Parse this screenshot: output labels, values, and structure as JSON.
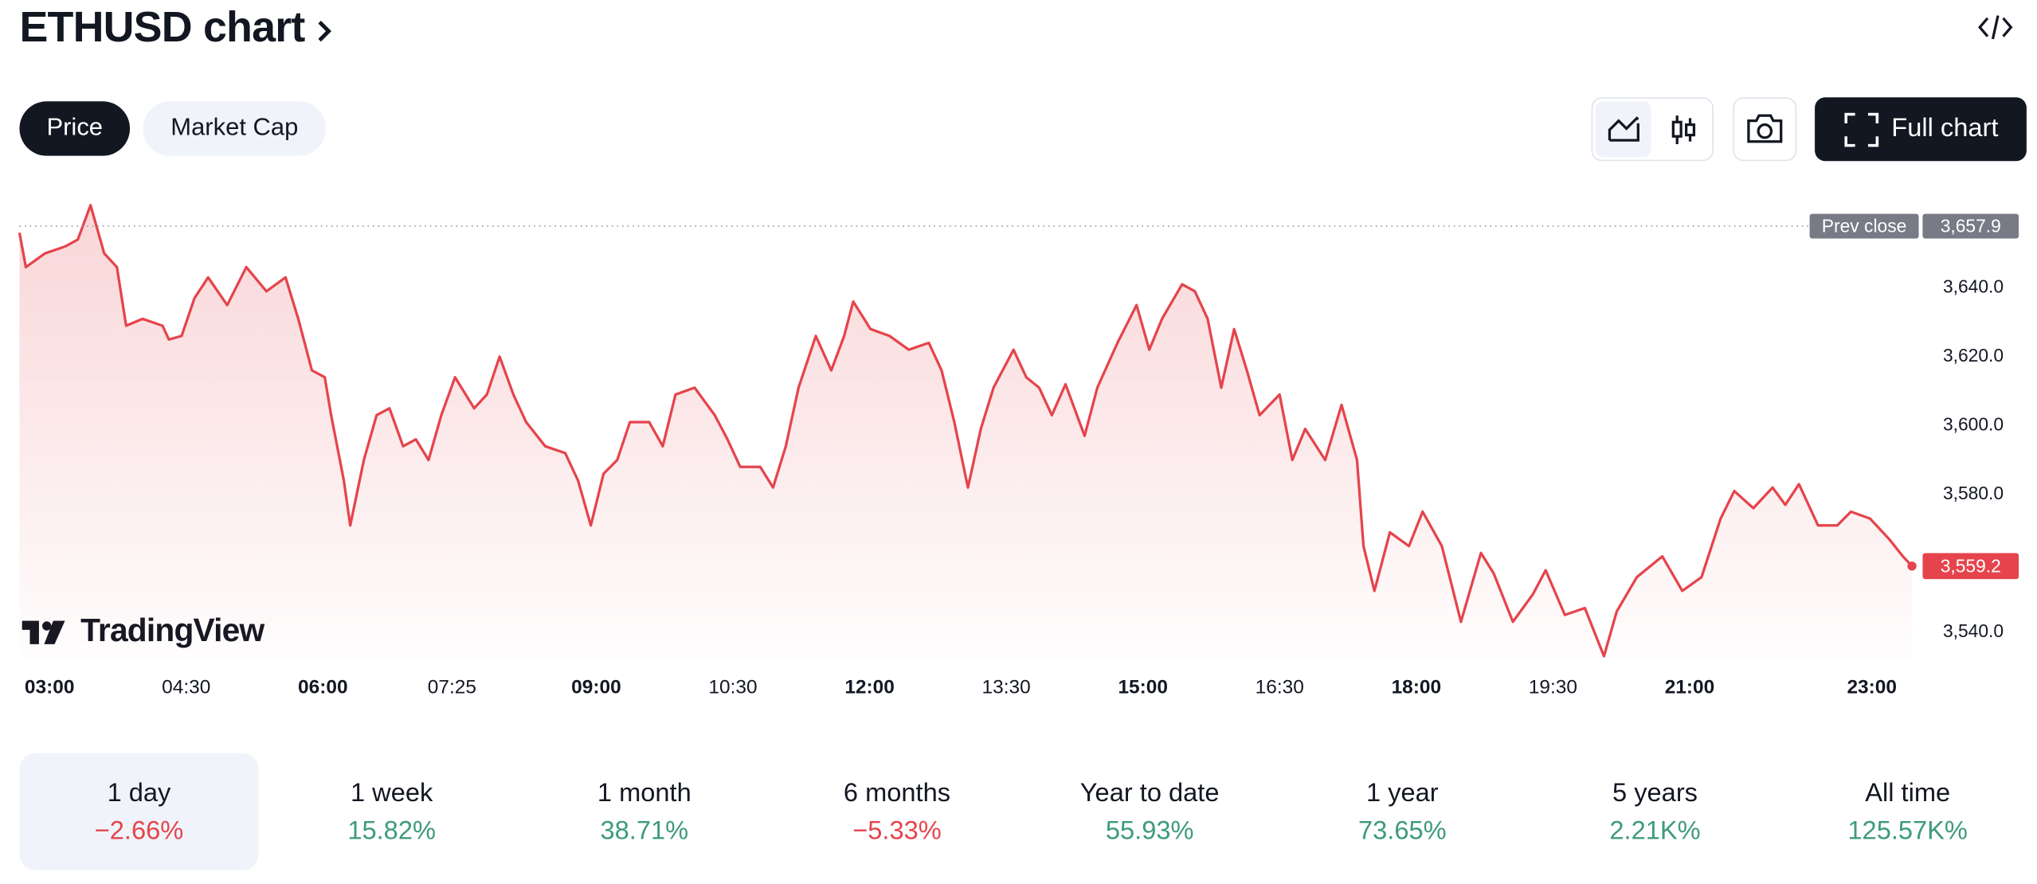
{
  "header": {
    "title": "ETHUSD chart",
    "tabs": [
      "Price",
      "Market Cap"
    ],
    "full_chart": "Full chart"
  },
  "chart_data": {
    "type": "line",
    "watermark": "TradingView",
    "color": "#e5444c",
    "x": [
      2.67,
      2.74,
      2.95,
      3.17,
      3.31,
      3.45,
      3.6,
      3.74,
      3.84,
      4.02,
      4.24,
      4.31,
      4.45,
      4.59,
      4.74,
      4.95,
      5.16,
      5.38,
      5.59,
      5.73,
      5.88,
      6.02,
      6.09,
      6.23,
      6.3,
      6.45,
      6.59,
      6.73,
      6.88,
      7.02,
      7.16,
      7.3,
      7.45,
      7.66,
      7.8,
      7.94,
      8.09,
      8.23,
      8.44,
      8.66,
      8.8,
      8.94,
      9.08,
      9.23,
      9.37,
      9.58,
      9.73,
      9.87,
      10.08,
      10.3,
      10.44,
      10.58,
      10.8,
      10.94,
      11.08,
      11.22,
      11.41,
      11.58,
      11.72,
      11.82,
      12.01,
      12.22,
      12.43,
      12.65,
      12.79,
      12.93,
      13.08,
      13.22,
      13.36,
      13.58,
      13.72,
      13.86,
      14.0,
      14.15,
      14.36,
      14.5,
      14.72,
      14.93,
      15.07,
      15.21,
      15.43,
      15.57,
      15.71,
      15.86,
      16.0,
      16.14,
      16.28,
      16.5,
      16.64,
      16.78,
      17.0,
      17.18,
      17.35,
      17.42,
      17.54,
      17.71,
      17.92,
      18.07,
      18.28,
      18.49,
      18.71,
      18.85,
      19.06,
      19.28,
      19.42,
      19.63,
      19.85,
      20.06,
      20.2,
      20.42,
      20.7,
      20.92,
      21.13,
      21.34,
      21.49,
      21.7,
      21.91,
      22.05,
      22.2,
      22.41,
      22.62,
      22.77,
      22.98,
      23.19,
      23.34,
      23.44
    ],
    "values": [
      3656,
      3646,
      3650,
      3652,
      3654,
      3664,
      3650,
      3646,
      3629,
      3631,
      3629,
      3625,
      3626,
      3637,
      3643,
      3635,
      3646,
      3639,
      3643,
      3631,
      3616,
      3614,
      3603,
      3584,
      3571,
      3590,
      3603,
      3605,
      3594,
      3596,
      3590,
      3603,
      3614,
      3605,
      3609,
      3620,
      3609,
      3601,
      3594,
      3592,
      3584,
      3571,
      3586,
      3590,
      3601,
      3601,
      3594,
      3609,
      3611,
      3603,
      3596,
      3588,
      3588,
      3582,
      3594,
      3611,
      3626,
      3616,
      3626,
      3636,
      3628,
      3626,
      3622,
      3624,
      3616,
      3601,
      3582,
      3599,
      3611,
      3622,
      3614,
      3611,
      3603,
      3612,
      3597,
      3611,
      3624,
      3635,
      3622,
      3631,
      3641,
      3639,
      3631,
      3611,
      3628,
      3616,
      3603,
      3609,
      3590,
      3599,
      3590,
      3606,
      3590,
      3565,
      3552,
      3569,
      3565,
      3575,
      3565,
      3543,
      3563,
      3557,
      3543,
      3551,
      3558,
      3545,
      3547,
      3533,
      3546,
      3556,
      3562,
      3552,
      3556,
      3573,
      3581,
      3576,
      3582,
      3577,
      3583,
      3571,
      3571,
      3575,
      3573,
      3567,
      3562,
      3559.2
    ],
    "xlim": [
      2.67,
      23.5
    ],
    "ylim": [
      3532,
      3667
    ],
    "xticks": [
      {
        "value": 3,
        "label": "03:00"
      },
      {
        "value": 4.5,
        "label": "04:30"
      },
      {
        "value": 6,
        "label": "06:00"
      },
      {
        "value": 7.4167,
        "label": "07:25"
      },
      {
        "value": 9,
        "label": "09:00"
      },
      {
        "value": 10.5,
        "label": "10:30"
      },
      {
        "value": 12,
        "label": "12:00"
      },
      {
        "value": 13.5,
        "label": "13:30"
      },
      {
        "value": 15,
        "label": "15:00"
      },
      {
        "value": 16.5,
        "label": "16:30"
      },
      {
        "value": 18,
        "label": "18:00"
      },
      {
        "value": 19.5,
        "label": "19:30"
      },
      {
        "value": 21,
        "label": "21:00"
      },
      {
        "value": 23,
        "label": "23:00"
      }
    ],
    "yticks": [
      {
        "value": 3540,
        "label": "3,540.0"
      },
      {
        "value": 3580,
        "label": "3,580.0"
      },
      {
        "value": 3600,
        "label": "3,600.0"
      },
      {
        "value": 3620,
        "label": "3,620.0"
      },
      {
        "value": 3640,
        "label": "3,640.0"
      }
    ],
    "prev_close": {
      "name": "Prev close",
      "value": 3657.9,
      "label": "3,657.9"
    },
    "current_price": {
      "value": 3559.2,
      "label": "3,559.2"
    }
  },
  "periods": [
    {
      "label": "1 day",
      "change": "−2.66%",
      "color": "#e5444c"
    },
    {
      "label": "1 week",
      "change": "15.82%",
      "color": "#3d9b7b"
    },
    {
      "label": "1 month",
      "change": "38.71%",
      "color": "#3d9b7b"
    },
    {
      "label": "6 months",
      "change": "−5.33%",
      "color": "#e5444c"
    },
    {
      "label": "Year to date",
      "change": "55.93%",
      "color": "#3d9b7b"
    },
    {
      "label": "1 year",
      "change": "73.65%",
      "color": "#3d9b7b"
    },
    {
      "label": "5 years",
      "change": "2.21K%",
      "color": "#3d9b7b"
    },
    {
      "label": "All time",
      "change": "125.57K%",
      "color": "#3d9b7b"
    }
  ]
}
